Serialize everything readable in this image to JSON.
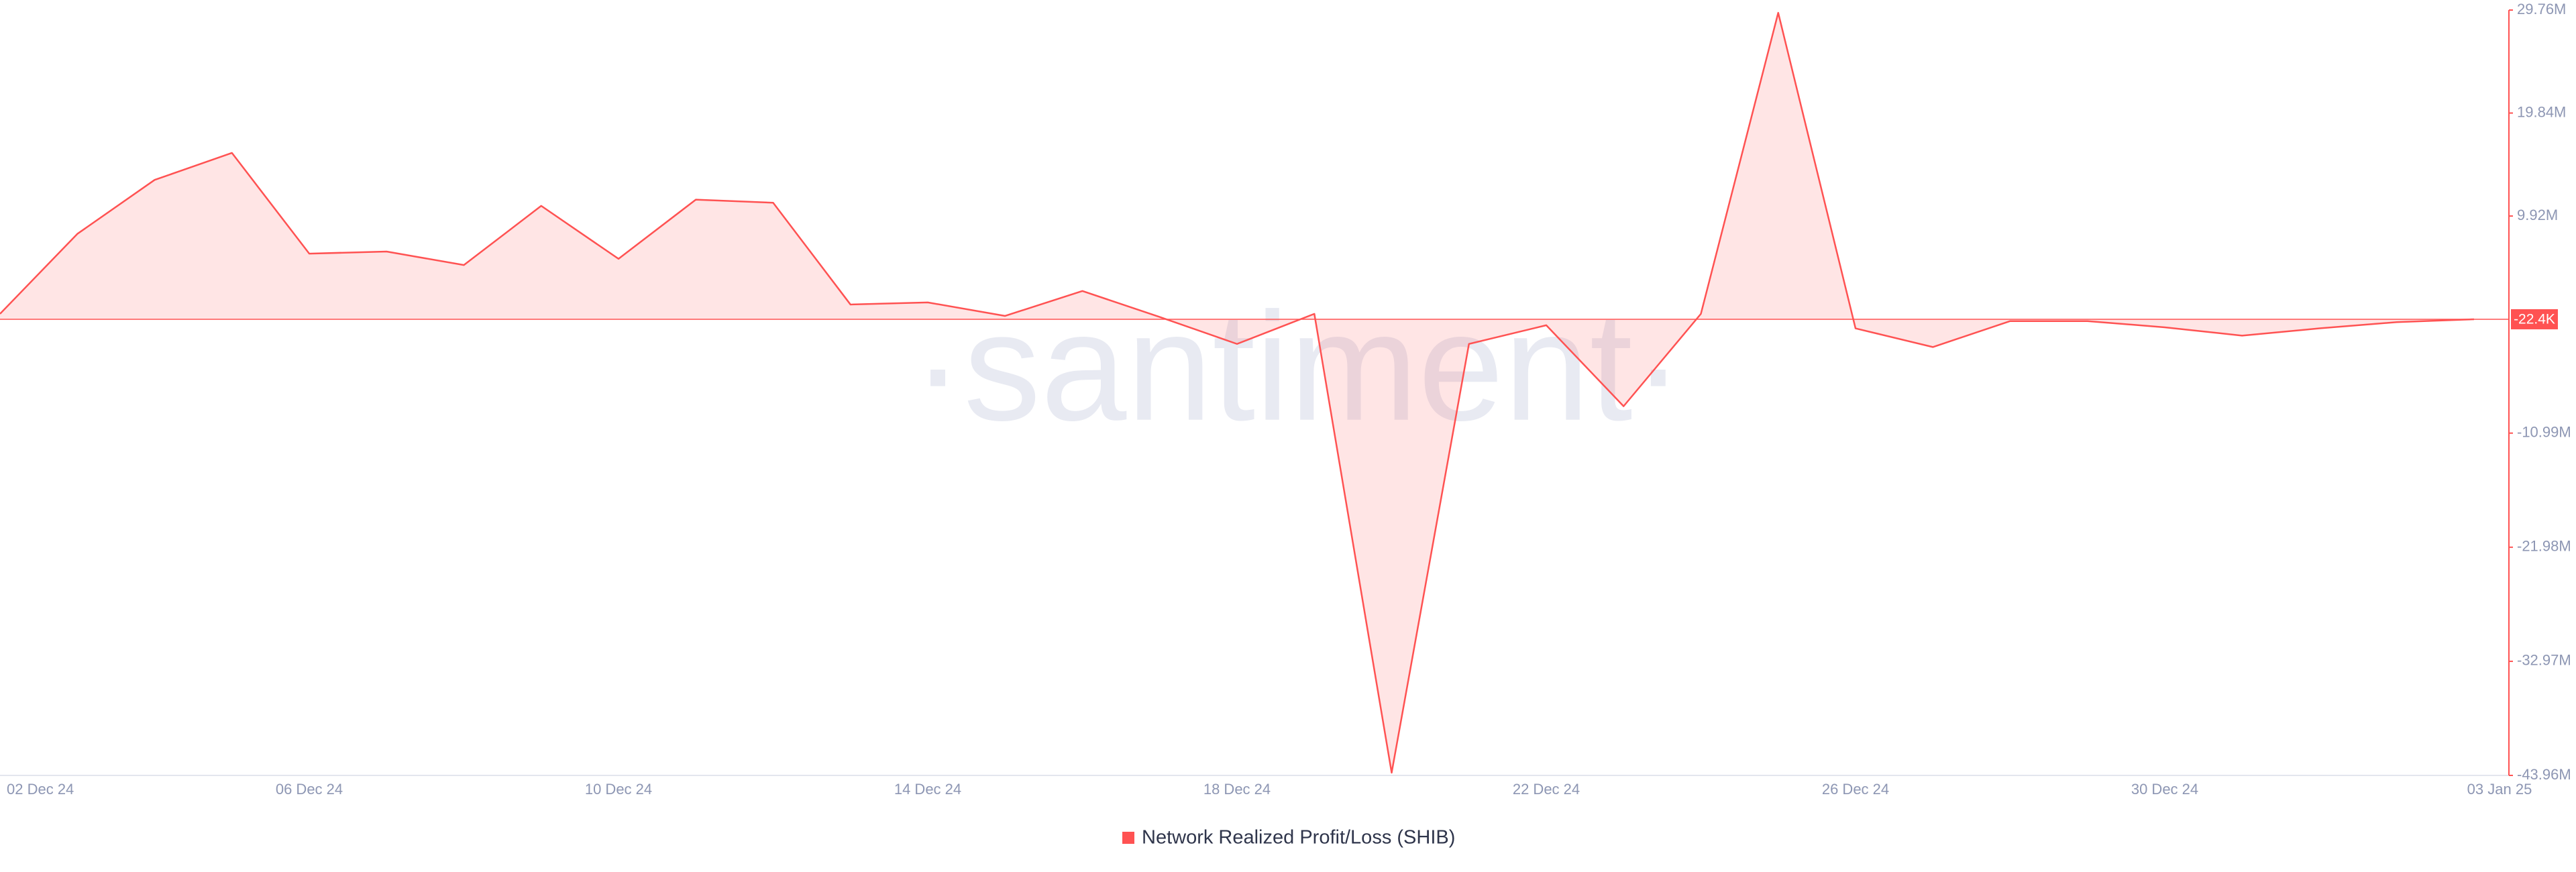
{
  "chart_data": {
    "type": "area",
    "categories": [
      "02 Dec 24",
      null,
      null,
      null,
      "06 Dec 24",
      null,
      null,
      null,
      "10 Dec 24",
      null,
      null,
      null,
      "14 Dec 24",
      null,
      null,
      null,
      "18 Dec 24",
      null,
      null,
      null,
      "22 Dec 24",
      null,
      null,
      null,
      "26 Dec 24",
      null,
      null,
      null,
      "30 Dec 24",
      null,
      null,
      null,
      "03 Jan 25"
    ],
    "series": [
      {
        "name": "Network Realized Profit/Loss (SHIB)",
        "color": "#ff5252",
        "values": [
          500000,
          8200000,
          13400000,
          16000000,
          6300000,
          6500000,
          5200000,
          10900000,
          5800000,
          11500000,
          11200000,
          1400000,
          1600000,
          300000,
          2700000,
          200000,
          -2400000,
          500000,
          -43700000,
          -2400000,
          -600000,
          -8400000,
          500000,
          29500000,
          -900000,
          -2700000,
          -200000,
          -200000,
          -800000,
          -1600000,
          -900000,
          -300000,
          -22400
        ]
      }
    ],
    "current_value": {
      "value": -22400,
      "label": "-22.4K"
    },
    "ylim": [
      -43960000,
      29760000
    ],
    "yticks": [
      {
        "value": 29760000,
        "label": "29.76M"
      },
      {
        "value": 19840000,
        "label": "19.84M"
      },
      {
        "value": 9920000,
        "label": "9.92M"
      },
      {
        "value": -10990000,
        "label": "-10.99M"
      },
      {
        "value": -21980000,
        "label": "-21.98M"
      },
      {
        "value": -32970000,
        "label": "-32.97M"
      },
      {
        "value": -43960000,
        "label": "-43.96M"
      }
    ],
    "watermark": "·santiment·"
  }
}
